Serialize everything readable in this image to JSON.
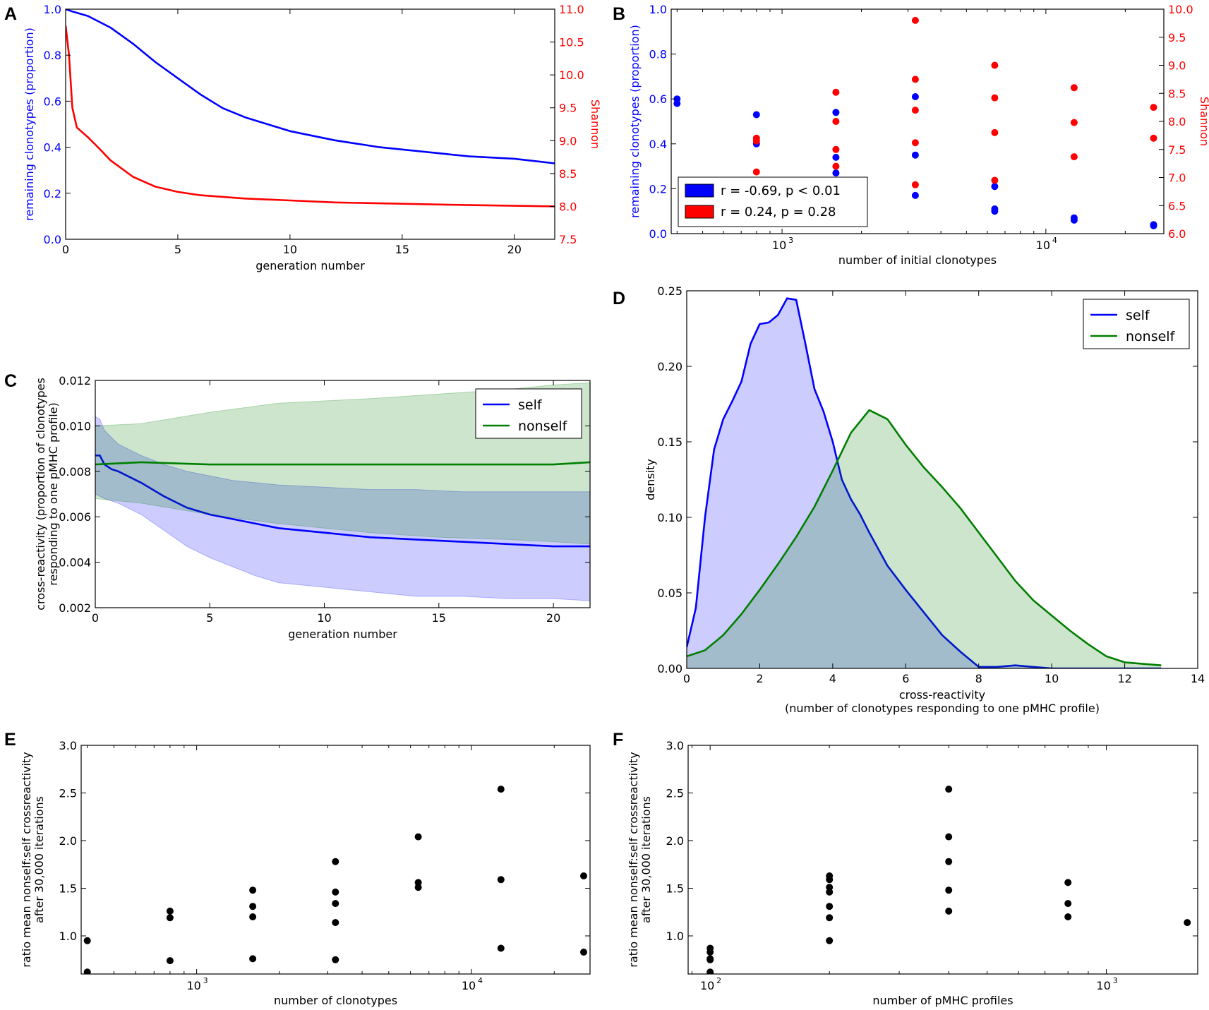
{
  "colors": {
    "blue": "#0000ff",
    "red": "#ff0000",
    "green": "#007f00",
    "black": "#000000",
    "blue_fill": "#aaaaff",
    "green_fill": "#a8d5a8"
  },
  "panel_labels": [
    "A",
    "B",
    "C",
    "D",
    "E",
    "F"
  ],
  "chart_data": [
    {
      "id": "A",
      "type": "line",
      "xlabel": "generation number",
      "ylabel": "remaining clonotypes (proportion)",
      "ylabel_right": "Shannon",
      "xlim": [
        0,
        21.8
      ],
      "ylim": [
        0,
        1
      ],
      "ylim_right": [
        7.5,
        11
      ],
      "xticks": [
        0,
        5,
        10,
        15,
        20
      ],
      "yticks": [
        0,
        0.2,
        0.4,
        0.6,
        0.8,
        1.0
      ],
      "yticks_right": [
        7.5,
        8.0,
        8.5,
        9.0,
        9.5,
        10.0,
        10.5,
        11.0
      ],
      "x_tick_labels": [
        "0",
        "5",
        "10",
        "15",
        "20"
      ],
      "y_tick_labels": [
        "0.0",
        "0.2",
        "0.4",
        "0.6",
        "0.8",
        "1.0"
      ],
      "y_right_tick_labels": [
        "7.5",
        "8.0",
        "8.5",
        "9.0",
        "9.5",
        "10.0",
        "10.5",
        "11.0"
      ],
      "series": [
        {
          "name": "remaining clonotypes",
          "axis": "left",
          "color": "blue",
          "x": [
            0,
            0.3,
            1,
            2,
            3,
            4,
            5,
            6,
            7,
            8,
            9,
            10,
            12,
            14,
            16,
            18,
            20,
            21.8
          ],
          "y": [
            1.0,
            0.99,
            0.97,
            0.92,
            0.85,
            0.77,
            0.7,
            0.63,
            0.57,
            0.53,
            0.5,
            0.47,
            0.43,
            0.4,
            0.38,
            0.36,
            0.35,
            0.33
          ]
        },
        {
          "name": "Shannon",
          "axis": "right",
          "color": "red",
          "x": [
            0,
            0.15,
            0.3,
            0.5,
            1,
            1.5,
            2,
            3,
            4,
            5,
            6,
            8,
            10,
            12,
            15,
            18,
            21.8
          ],
          "y": [
            10.75,
            10.3,
            9.5,
            9.2,
            9.05,
            8.88,
            8.7,
            8.45,
            8.3,
            8.22,
            8.17,
            8.12,
            8.09,
            8.06,
            8.04,
            8.02,
            8.0
          ]
        }
      ]
    },
    {
      "id": "B",
      "type": "scatter",
      "xscale": "log",
      "xlabel": "number of initial clonotypes",
      "ylabel": "remaining clonotypes (proportion)",
      "ylabel_right": "Shannon",
      "xlim": [
        380,
        28000
      ],
      "ylim": [
        0,
        1
      ],
      "ylim_right": [
        6.0,
        10.0
      ],
      "xticks": [
        1000,
        10000
      ],
      "x_tick_labels": [
        "10",
        "10"
      ],
      "x_tick_exponents": [
        "3",
        "4"
      ],
      "yticks": [
        0,
        0.2,
        0.4,
        0.6,
        0.8,
        1.0
      ],
      "y_tick_labels": [
        "0.0",
        "0.2",
        "0.4",
        "0.6",
        "0.8",
        "1.0"
      ],
      "yticks_right": [
        6.0,
        6.5,
        7.0,
        7.5,
        8.0,
        8.5,
        9.0,
        9.5,
        10.0
      ],
      "y_right_tick_labels": [
        "6.0",
        "6.5",
        "7.0",
        "7.5",
        "8.0",
        "8.5",
        "9.0",
        "9.5",
        "10.0"
      ],
      "legend": [
        {
          "label": "r = -0.69, p < 0.01",
          "color": "blue"
        },
        {
          "label": "r = 0.24, p = 0.28",
          "color": "red"
        }
      ],
      "series": [
        {
          "name": "remaining clonotypes",
          "axis": "left",
          "color": "blue",
          "x": [
            400,
            400,
            800,
            800,
            1600,
            1600,
            1600,
            3200,
            3200,
            3200,
            6400,
            6400,
            6400,
            12800,
            12800,
            25600,
            25600
          ],
          "y": [
            0.6,
            0.58,
            0.53,
            0.4,
            0.54,
            0.34,
            0.27,
            0.61,
            0.35,
            0.17,
            0.21,
            0.11,
            0.1,
            0.07,
            0.06,
            0.04,
            0.035
          ]
        },
        {
          "name": "Shannon",
          "axis": "right",
          "color": "red",
          "x": [
            800,
            800,
            800,
            1600,
            1600,
            1600,
            1600,
            3200,
            3200,
            3200,
            3200,
            3200,
            6400,
            6400,
            6400,
            6400,
            12800,
            12800,
            12800,
            25600,
            25600
          ],
          "y": [
            7.7,
            7.65,
            7.1,
            8.52,
            8.0,
            7.5,
            7.2,
            9.8,
            8.75,
            8.2,
            7.62,
            6.87,
            9.0,
            8.42,
            7.8,
            6.95,
            8.6,
            7.98,
            7.37,
            8.25,
            7.7
          ]
        }
      ]
    },
    {
      "id": "C",
      "type": "line",
      "xlabel": "generation number",
      "ylabel_lines": [
        "cross-reactivity (proportion of clonotypes",
        "responding to one pMHC profile)"
      ],
      "xlim": [
        0,
        21.6
      ],
      "ylim": [
        0.002,
        0.012
      ],
      "xticks": [
        0,
        5,
        10,
        15,
        20
      ],
      "x_tick_labels": [
        "0",
        "5",
        "10",
        "15",
        "20"
      ],
      "yticks": [
        0.002,
        0.004,
        0.006,
        0.008,
        0.01,
        0.012
      ],
      "y_tick_labels": [
        "0.002",
        "0.004",
        "0.006",
        "0.008",
        "0.010",
        "0.012"
      ],
      "legend": [
        {
          "label": "self",
          "color": "blue"
        },
        {
          "label": "nonself",
          "color": "green"
        }
      ],
      "series": [
        {
          "name": "self",
          "color": "blue",
          "x": [
            0,
            0.2,
            0.4,
            0.7,
            1,
            2,
            3,
            4,
            5,
            6,
            7,
            8,
            10,
            12,
            14,
            16,
            18,
            20,
            21.6
          ],
          "y": [
            0.0087,
            0.0087,
            0.0083,
            0.0081,
            0.008,
            0.0075,
            0.0069,
            0.0064,
            0.0061,
            0.0059,
            0.0057,
            0.0055,
            0.0053,
            0.0051,
            0.005,
            0.0049,
            0.0048,
            0.0047,
            0.0047
          ],
          "band_upper": [
            0.0104,
            0.0103,
            0.0098,
            0.0095,
            0.0092,
            0.0087,
            0.0083,
            0.008,
            0.0078,
            0.0076,
            0.0075,
            0.0074,
            0.0073,
            0.0072,
            0.0072,
            0.0071,
            0.0071,
            0.0071,
            0.0071
          ],
          "band_lower": [
            0.007,
            0.0069,
            0.0068,
            0.0067,
            0.0066,
            0.0061,
            0.0054,
            0.0047,
            0.0042,
            0.0038,
            0.0034,
            0.0031,
            0.0029,
            0.0027,
            0.0025,
            0.0025,
            0.0024,
            0.0024,
            0.0023
          ]
        },
        {
          "name": "nonself",
          "color": "green",
          "x": [
            0,
            2,
            5,
            8,
            10,
            12,
            15,
            18,
            20,
            21.6
          ],
          "y": [
            0.0083,
            0.0084,
            0.0083,
            0.0083,
            0.0083,
            0.0083,
            0.0083,
            0.0083,
            0.0083,
            0.0084
          ],
          "band_upper": [
            0.01,
            0.0101,
            0.0106,
            0.011,
            0.0111,
            0.0112,
            0.0114,
            0.0116,
            0.0118,
            0.0119
          ],
          "band_lower": [
            0.0068,
            0.0066,
            0.0061,
            0.0057,
            0.0055,
            0.0053,
            0.0051,
            0.005,
            0.0049,
            0.0048
          ]
        }
      ]
    },
    {
      "id": "D",
      "type": "area",
      "xlabel": "cross-reactivity",
      "xlabel_line2": "(number of clonotypes responding to one pMHC profile)",
      "ylabel": "density",
      "xlim": [
        0,
        14
      ],
      "ylim": [
        0,
        0.25
      ],
      "xticks": [
        0,
        2,
        4,
        6,
        8,
        10,
        12,
        14
      ],
      "x_tick_labels": [
        "0",
        "2",
        "4",
        "6",
        "8",
        "10",
        "12",
        "14"
      ],
      "yticks": [
        0,
        0.05,
        0.1,
        0.15,
        0.2,
        0.25
      ],
      "y_tick_labels": [
        "0.00",
        "0.05",
        "0.10",
        "0.15",
        "0.20",
        "0.25"
      ],
      "legend": [
        {
          "label": "self",
          "color": "blue"
        },
        {
          "label": "nonself",
          "color": "green"
        }
      ],
      "series": [
        {
          "name": "self",
          "color": "blue",
          "x": [
            0,
            0.25,
            0.5,
            0.75,
            1,
            1.25,
            1.5,
            1.75,
            2,
            2.25,
            2.5,
            2.75,
            3,
            3.25,
            3.5,
            3.75,
            4,
            4.25,
            4.5,
            4.75,
            5,
            5.5,
            6,
            6.5,
            7,
            7.5,
            8,
            8.5,
            9,
            9.5,
            10,
            10.5,
            11,
            12,
            13
          ],
          "y": [
            0.014,
            0.04,
            0.1,
            0.145,
            0.165,
            0.177,
            0.19,
            0.215,
            0.228,
            0.229,
            0.234,
            0.245,
            0.244,
            0.215,
            0.185,
            0.17,
            0.15,
            0.125,
            0.112,
            0.102,
            0.09,
            0.068,
            0.052,
            0.037,
            0.022,
            0.011,
            0.001,
            0.001,
            0.002,
            0.001,
            0,
            0,
            0,
            0,
            0
          ]
        },
        {
          "name": "nonself",
          "color": "green",
          "x": [
            0,
            0.5,
            1,
            1.5,
            2,
            2.5,
            3,
            3.5,
            4,
            4.5,
            5,
            5.5,
            6,
            6.5,
            7,
            7.5,
            8,
            8.5,
            9,
            9.5,
            10,
            10.5,
            11,
            11.5,
            12,
            12.5,
            13
          ],
          "y": [
            0.008,
            0.012,
            0.022,
            0.036,
            0.052,
            0.069,
            0.087,
            0.107,
            0.131,
            0.156,
            0.171,
            0.165,
            0.148,
            0.133,
            0.12,
            0.106,
            0.09,
            0.074,
            0.058,
            0.045,
            0.035,
            0.025,
            0.016,
            0.008,
            0.004,
            0.003,
            0.002
          ]
        }
      ]
    },
    {
      "id": "E",
      "type": "scatter",
      "xscale": "log",
      "xlabel": "number of clonotypes",
      "ylabel_lines": [
        "ratio mean nonself:self crossreactivity",
        "after 30,000 iterations"
      ],
      "xlim": [
        380,
        27000
      ],
      "ylim": [
        0.6,
        3.0
      ],
      "xticks": [
        1000,
        10000
      ],
      "x_tick_labels": [
        "10",
        "10"
      ],
      "x_tick_exponents": [
        "3",
        "4"
      ],
      "yticks": [
        1.0,
        1.5,
        2.0,
        2.5,
        3.0
      ],
      "y_tick_labels": [
        "1.0",
        "1.5",
        "2.0",
        "2.5",
        "3.0"
      ],
      "series": [
        {
          "name": "ratio",
          "color": "black",
          "x": [
            400,
            400,
            800,
            800,
            800,
            1600,
            1600,
            1600,
            1600,
            3200,
            3200,
            3200,
            3200,
            3200,
            6400,
            6400,
            6400,
            12800,
            12800,
            12800,
            25600,
            25600
          ],
          "y": [
            0.95,
            0.62,
            1.26,
            1.19,
            0.74,
            1.48,
            1.31,
            1.2,
            0.76,
            1.78,
            1.46,
            1.34,
            1.14,
            0.75,
            2.04,
            1.56,
            1.51,
            2.54,
            1.59,
            0.87,
            1.63,
            0.83
          ]
        }
      ]
    },
    {
      "id": "F",
      "type": "scatter",
      "xscale": "log",
      "xlabel": "number of pMHC profiles",
      "ylabel_lines": [
        "ratio mean nonself:self crossreactivity",
        "after 30,000 iterations"
      ],
      "xlim": [
        88,
        1700
      ],
      "ylim": [
        0.6,
        3.0
      ],
      "xticks": [
        100,
        1000
      ],
      "x_tick_labels": [
        "10",
        "10"
      ],
      "x_tick_exponents": [
        "2",
        "3"
      ],
      "yticks": [
        1.0,
        1.5,
        2.0,
        2.5,
        3.0
      ],
      "y_tick_labels": [
        "1.0",
        "1.5",
        "2.0",
        "2.5",
        "3.0"
      ],
      "series": [
        {
          "name": "ratio",
          "color": "black",
          "x": [
            100,
            100,
            100,
            100,
            100,
            100,
            200,
            200,
            200,
            200,
            200,
            200,
            200,
            400,
            400,
            400,
            400,
            400,
            800,
            800,
            800,
            1600
          ],
          "y": [
            0.87,
            0.83,
            0.76,
            0.75,
            0.62,
            0.61,
            1.63,
            1.59,
            1.51,
            1.46,
            1.31,
            1.19,
            0.95,
            2.54,
            2.04,
            1.78,
            1.48,
            1.26,
            1.56,
            1.34,
            1.2,
            1.14
          ]
        }
      ]
    }
  ]
}
